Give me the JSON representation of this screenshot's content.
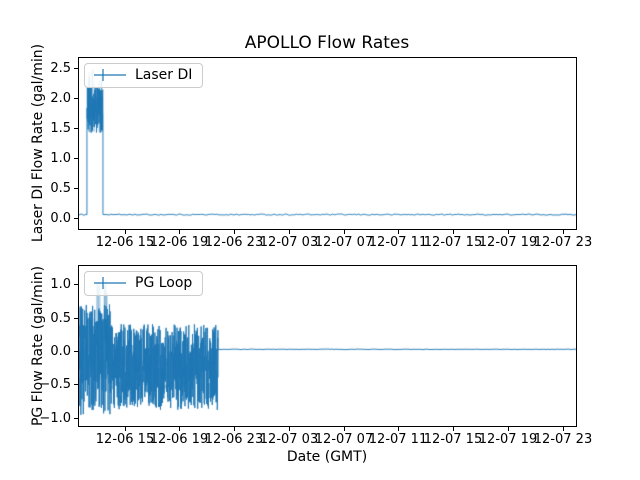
{
  "chart_data": {
    "type": "line",
    "title": "APOLLO Flow Rates",
    "legend_position": "upper left",
    "grid": false,
    "x_axis": {
      "label": "Date (GMT)",
      "range_hours": [
        11.6,
        47.9
      ],
      "tick_hours": [
        15,
        19,
        23,
        27,
        31,
        35,
        39,
        43,
        47
      ],
      "tick_labels": [
        "12-06 15",
        "12-06 19",
        "12-06 23",
        "12-07 03",
        "12-07 07",
        "12-07 11",
        "12-07 15",
        "12-07 19",
        "12-07 23"
      ]
    },
    "plots": [
      {
        "id": "laser_di",
        "ylabel": "Laser DI Flow Rate (gal/min)",
        "legend_label": "Laser DI",
        "line_color": "#1f77b4",
        "light_color": "rgba(31,119,180,0.35)",
        "ylim": [
          -0.17,
          2.68
        ],
        "y_tick_values": [
          0.0,
          0.5,
          1.0,
          1.5,
          2.0,
          2.5
        ],
        "y_tick_labels": [
          "0.0",
          "0.5",
          "1.0",
          "1.5",
          "2.0",
          "2.5"
        ],
        "segments": [
          {
            "kind": "flat",
            "from": 11.6,
            "to": 12.18,
            "value": 0.07,
            "noise": 0.01
          },
          {
            "kind": "noise",
            "from": 12.18,
            "to": 13.35,
            "min": 1.42,
            "max": 2.2
          },
          {
            "kind": "flat",
            "from": 13.35,
            "to": 47.9,
            "value": 0.07,
            "noise": 0.01
          }
        ],
        "spikes": {
          "from": 12.22,
          "to": 13.3,
          "base": 1.45,
          "min": 2.25,
          "max": 2.52,
          "count": 10
        }
      },
      {
        "id": "pg_loop",
        "ylabel": "PG Flow Rate (gal/min)",
        "legend_label": "PG Loop",
        "line_color": "#1f77b4",
        "light_color": "rgba(31,119,180,0.35)",
        "ylim": [
          -1.11,
          1.29
        ],
        "y_tick_values": [
          -1.0,
          -0.5,
          0.0,
          0.5,
          1.0
        ],
        "y_tick_labels": [
          "−1.0",
          "−0.5",
          "0.0",
          "0.5",
          "1.0"
        ],
        "segments": [
          {
            "kind": "noise",
            "from": 11.6,
            "to": 13.9,
            "min": -0.95,
            "max": 0.72
          },
          {
            "kind": "noise",
            "from": 13.9,
            "to": 21.75,
            "min": -0.87,
            "max": 0.42
          },
          {
            "kind": "flat",
            "from": 21.75,
            "to": 47.9,
            "value": 0.04,
            "noise": 0.004
          }
        ],
        "spikes": {
          "from": 12.55,
          "to": 13.85,
          "base": -0.4,
          "min": 0.88,
          "max": 1.1,
          "count": 9
        }
      }
    ]
  }
}
